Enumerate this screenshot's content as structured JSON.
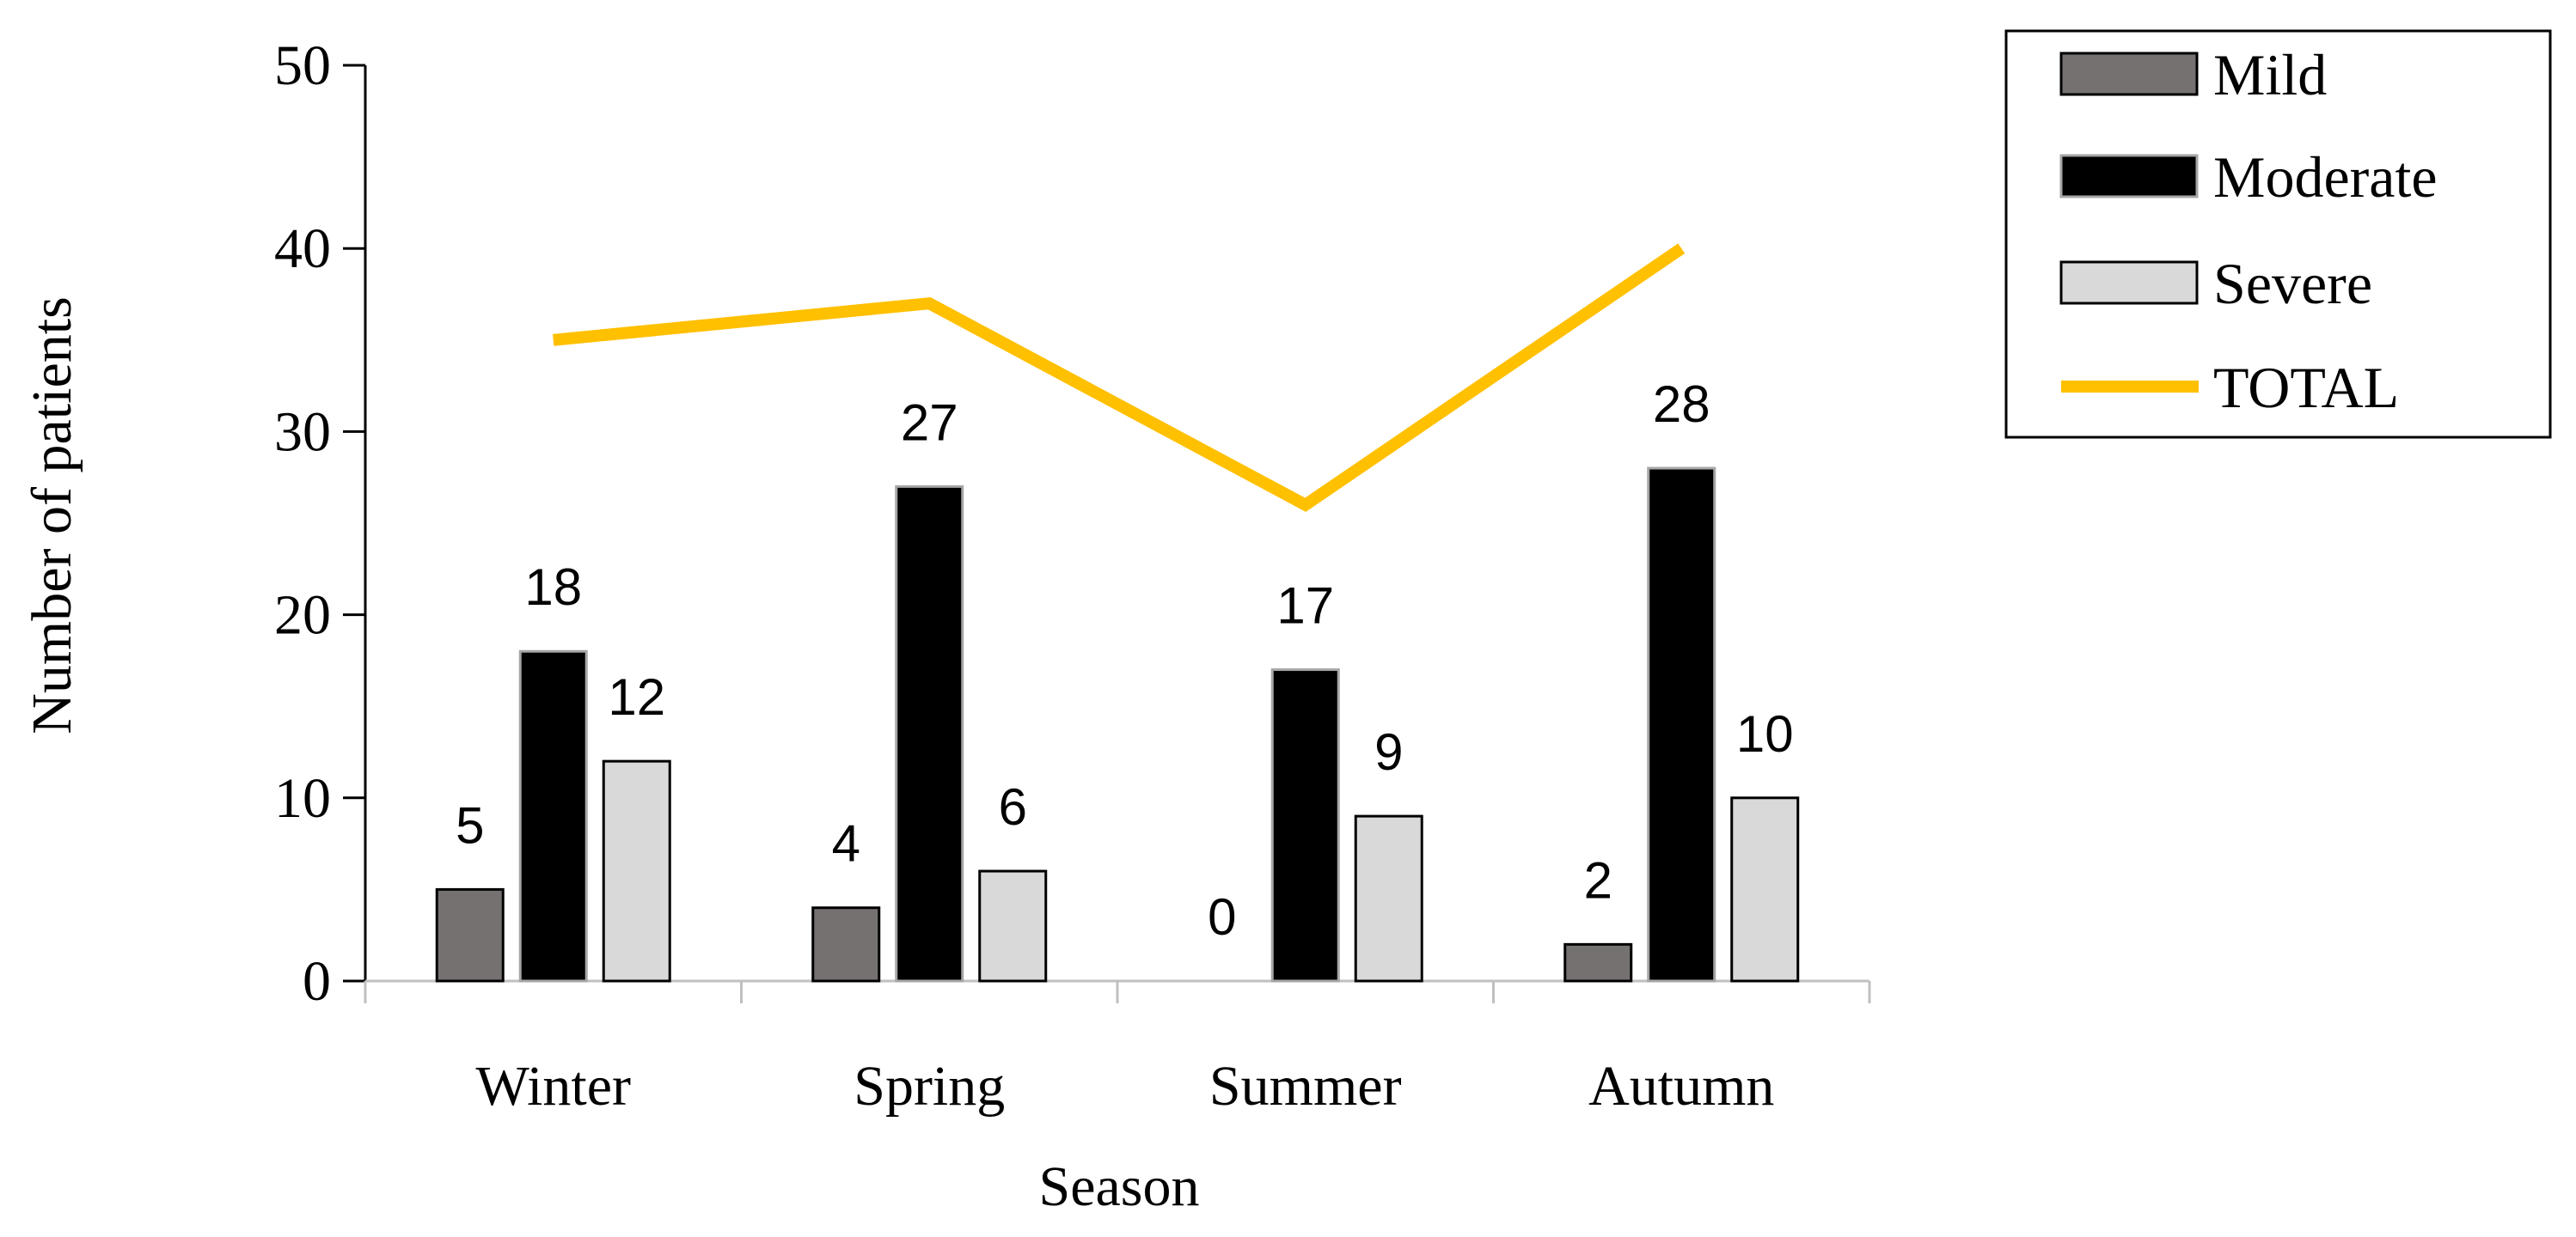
{
  "chart_data": {
    "type": "bar",
    "categories": [
      "Winter",
      "Spring",
      "Summer",
      "Autumn"
    ],
    "series": [
      {
        "name": "Mild",
        "values": [
          5,
          4,
          0,
          2
        ],
        "color": "#767171"
      },
      {
        "name": "Moderate",
        "values": [
          18,
          27,
          17,
          28
        ],
        "color": "#000000"
      },
      {
        "name": "Severe",
        "values": [
          12,
          6,
          9,
          10
        ],
        "color": "#d9d9d9"
      }
    ],
    "line_series": {
      "name": "TOTAL",
      "values": [
        35,
        37,
        26,
        40
      ],
      "color": "#ffc000"
    },
    "xlabel": "Season",
    "ylabel": "Number of patients",
    "ylim": [
      0,
      50
    ],
    "yticks": [
      0,
      10,
      20,
      30,
      40,
      50
    ],
    "data_labels": true,
    "grid": false,
    "legend_position": "top-right"
  }
}
